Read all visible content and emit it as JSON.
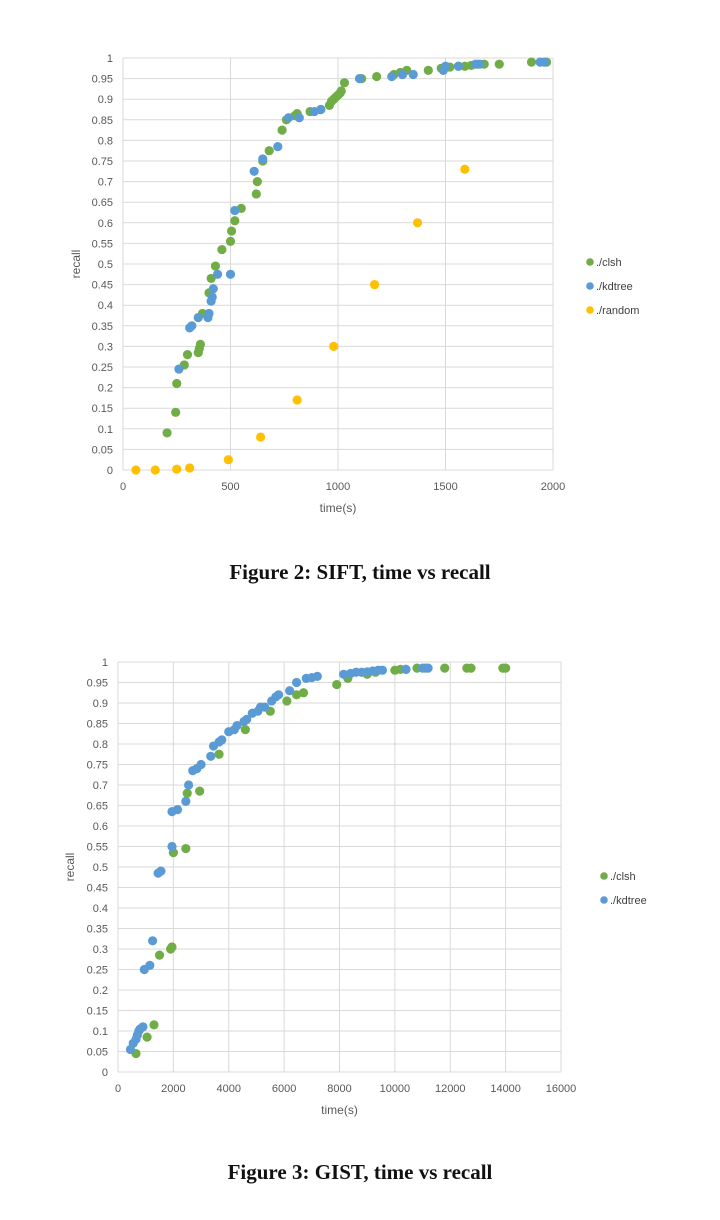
{
  "figures": [
    {
      "caption": "Figure 2: SIFT, time vs recall",
      "chart_data": {
        "type": "scatter",
        "xlabel": "time(s)",
        "ylabel": "recall",
        "xlim": [
          0,
          2000
        ],
        "ylim": [
          0,
          1
        ],
        "xticks": [
          "0",
          "500",
          "1000",
          "1500",
          "2000"
        ],
        "yticks": [
          "0",
          "0.05",
          "0.1",
          "0.15",
          "0.2",
          "0.25",
          "0.3",
          "0.35",
          "0.4",
          "0.45",
          "0.5",
          "0.55",
          "0.6",
          "0.65",
          "0.7",
          "0.75",
          "0.8",
          "0.85",
          "0.9",
          "0.95",
          "1"
        ],
        "grid": true,
        "legend_position": "right",
        "series": [
          {
            "name": "./clsh",
            "color": "#70ad47",
            "points": [
              [
                205,
                0.09
              ],
              [
                245,
                0.14
              ],
              [
                250,
                0.21
              ],
              [
                285,
                0.255
              ],
              [
                300,
                0.28
              ],
              [
                350,
                0.285
              ],
              [
                355,
                0.295
              ],
              [
                360,
                0.305
              ],
              [
                370,
                0.38
              ],
              [
                400,
                0.43
              ],
              [
                410,
                0.465
              ],
              [
                430,
                0.495
              ],
              [
                460,
                0.535
              ],
              [
                500,
                0.555
              ],
              [
                505,
                0.58
              ],
              [
                520,
                0.605
              ],
              [
                550,
                0.635
              ],
              [
                620,
                0.67
              ],
              [
                625,
                0.7
              ],
              [
                650,
                0.75
              ],
              [
                680,
                0.775
              ],
              [
                740,
                0.825
              ],
              [
                760,
                0.85
              ],
              [
                800,
                0.86
              ],
              [
                810,
                0.865
              ],
              [
                870,
                0.87
              ],
              [
                920,
                0.875
              ],
              [
                960,
                0.885
              ],
              [
                970,
                0.895
              ],
              [
                980,
                0.9
              ],
              [
                990,
                0.905
              ],
              [
                1000,
                0.91
              ],
              [
                1010,
                0.915
              ],
              [
                1015,
                0.92
              ],
              [
                1030,
                0.94
              ],
              [
                1110,
                0.95
              ],
              [
                1180,
                0.955
              ],
              [
                1260,
                0.96
              ],
              [
                1290,
                0.965
              ],
              [
                1320,
                0.97
              ],
              [
                1420,
                0.97
              ],
              [
                1480,
                0.975
              ],
              [
                1520,
                0.978
              ],
              [
                1560,
                0.98
              ],
              [
                1590,
                0.98
              ],
              [
                1620,
                0.982
              ],
              [
                1650,
                0.985
              ],
              [
                1680,
                0.985
              ],
              [
                1750,
                0.985
              ],
              [
                1900,
                0.99
              ],
              [
                1970,
                0.99
              ]
            ]
          },
          {
            "name": "./kdtree",
            "color": "#5b9bd5",
            "points": [
              [
                260,
                0.245
              ],
              [
                310,
                0.345
              ],
              [
                320,
                0.35
              ],
              [
                350,
                0.37
              ],
              [
                395,
                0.37
              ],
              [
                400,
                0.38
              ],
              [
                410,
                0.41
              ],
              [
                415,
                0.42
              ],
              [
                420,
                0.44
              ],
              [
                440,
                0.475
              ],
              [
                500,
                0.475
              ],
              [
                520,
                0.63
              ],
              [
                610,
                0.725
              ],
              [
                650,
                0.755
              ],
              [
                720,
                0.785
              ],
              [
                770,
                0.855
              ],
              [
                820,
                0.855
              ],
              [
                890,
                0.87
              ],
              [
                920,
                0.875
              ],
              [
                1100,
                0.95
              ],
              [
                1250,
                0.955
              ],
              [
                1300,
                0.96
              ],
              [
                1350,
                0.96
              ],
              [
                1490,
                0.97
              ],
              [
                1500,
                0.98
              ],
              [
                1560,
                0.98
              ],
              [
                1640,
                0.985
              ],
              [
                1660,
                0.985
              ],
              [
                1940,
                0.99
              ],
              [
                1960,
                0.99
              ]
            ]
          },
          {
            "name": "./random",
            "color": "#ffc000",
            "points": [
              [
                60,
                0
              ],
              [
                150,
                0
              ],
              [
                250,
                0.002
              ],
              [
                310,
                0.005
              ],
              [
                490,
                0.025
              ],
              [
                640,
                0.08
              ],
              [
                810,
                0.17
              ],
              [
                980,
                0.3
              ],
              [
                1170,
                0.45
              ],
              [
                1370,
                0.6
              ],
              [
                1590,
                0.73
              ]
            ]
          }
        ]
      }
    },
    {
      "caption": "Figure 3: GIST, time vs recall",
      "chart_data": {
        "type": "scatter",
        "xlabel": "time(s)",
        "ylabel": "recall",
        "xlim": [
          0,
          16000
        ],
        "ylim": [
          0,
          1
        ],
        "xticks": [
          "0",
          "2000",
          "4000",
          "6000",
          "8000",
          "10000",
          "12000",
          "14000",
          "16000"
        ],
        "yticks": [
          "0",
          "0.05",
          "0.1",
          "0.15",
          "0.2",
          "0.25",
          "0.3",
          "0.35",
          "0.4",
          "0.45",
          "0.5",
          "0.55",
          "0.6",
          "0.65",
          "0.7",
          "0.75",
          "0.8",
          "0.85",
          "0.9",
          "0.95",
          "1"
        ],
        "grid": true,
        "legend_position": "right",
        "series": [
          {
            "name": "./clsh",
            "color": "#70ad47",
            "points": [
              [
                650,
                0.045
              ],
              [
                1050,
                0.085
              ],
              [
                1300,
                0.115
              ],
              [
                1500,
                0.285
              ],
              [
                1900,
                0.3
              ],
              [
                1950,
                0.305
              ],
              [
                2000,
                0.535
              ],
              [
                2450,
                0.545
              ],
              [
                2500,
                0.68
              ],
              [
                2950,
                0.685
              ],
              [
                3650,
                0.775
              ],
              [
                4600,
                0.835
              ],
              [
                5500,
                0.88
              ],
              [
                6100,
                0.905
              ],
              [
                6450,
                0.92
              ],
              [
                6700,
                0.925
              ],
              [
                7900,
                0.945
              ],
              [
                8300,
                0.96
              ],
              [
                9000,
                0.97
              ],
              [
                9300,
                0.975
              ],
              [
                10000,
                0.98
              ],
              [
                10200,
                0.982
              ],
              [
                10400,
                0.982
              ],
              [
                10800,
                0.985
              ],
              [
                11100,
                0.985
              ],
              [
                11800,
                0.985
              ],
              [
                12600,
                0.985
              ],
              [
                12750,
                0.985
              ],
              [
                13900,
                0.985
              ],
              [
                14000,
                0.985
              ]
            ]
          },
          {
            "name": "./kdtree",
            "color": "#5b9bd5",
            "points": [
              [
                450,
                0.055
              ],
              [
                550,
                0.07
              ],
              [
                650,
                0.08
              ],
              [
                700,
                0.09
              ],
              [
                750,
                0.1
              ],
              [
                800,
                0.105
              ],
              [
                900,
                0.11
              ],
              [
                950,
                0.25
              ],
              [
                1150,
                0.26
              ],
              [
                1250,
                0.32
              ],
              [
                1450,
                0.485
              ],
              [
                1550,
                0.49
              ],
              [
                1950,
                0.55
              ],
              [
                1950,
                0.635
              ],
              [
                2150,
                0.64
              ],
              [
                2450,
                0.66
              ],
              [
                2550,
                0.7
              ],
              [
                2700,
                0.735
              ],
              [
                2850,
                0.74
              ],
              [
                3000,
                0.75
              ],
              [
                3350,
                0.77
              ],
              [
                3450,
                0.795
              ],
              [
                3650,
                0.805
              ],
              [
                3750,
                0.81
              ],
              [
                4000,
                0.83
              ],
              [
                4200,
                0.835
              ],
              [
                4300,
                0.845
              ],
              [
                4550,
                0.855
              ],
              [
                4650,
                0.86
              ],
              [
                4850,
                0.875
              ],
              [
                5050,
                0.88
              ],
              [
                5150,
                0.89
              ],
              [
                5300,
                0.89
              ],
              [
                5550,
                0.905
              ],
              [
                5700,
                0.915
              ],
              [
                5800,
                0.92
              ],
              [
                6200,
                0.93
              ],
              [
                6450,
                0.95
              ],
              [
                6800,
                0.96
              ],
              [
                7000,
                0.962
              ],
              [
                7200,
                0.965
              ],
              [
                8150,
                0.97
              ],
              [
                8400,
                0.972
              ],
              [
                8600,
                0.975
              ],
              [
                8800,
                0.975
              ],
              [
                9000,
                0.976
              ],
              [
                9200,
                0.978
              ],
              [
                9400,
                0.98
              ],
              [
                9550,
                0.98
              ],
              [
                10400,
                0.982
              ],
              [
                11000,
                0.985
              ],
              [
                11200,
                0.985
              ]
            ]
          }
        ]
      }
    }
  ]
}
